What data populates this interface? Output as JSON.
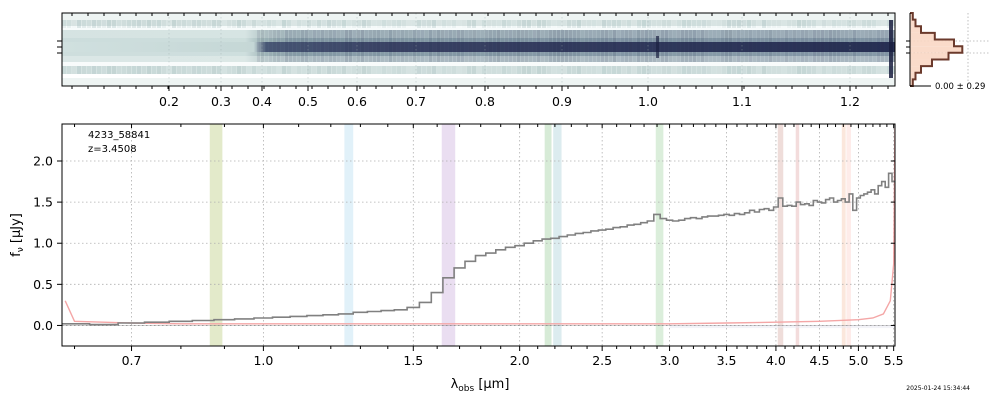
{
  "figure": {
    "timestamp": "2025-01-24 15:34:44"
  },
  "colors": {
    "spectrum": "#808080",
    "error": "#f4a6a6",
    "hist_fill": "#f9d7c4",
    "hist_line": "#6b3a2c",
    "grid": "#b0b0b0"
  },
  "chart_data": [
    {
      "type": "heatmap",
      "name": "2d-spectrum",
      "description_axis": "wavelength",
      "xticks": [
        "0.2",
        "0.3",
        "0.4",
        "0.5",
        "0.6",
        "0.7",
        "0.8",
        "0.9",
        "1.0",
        "1.1",
        "1.2"
      ],
      "colormap": "bone_r",
      "grid": true
    },
    {
      "type": "line",
      "name": "1d-spectrum",
      "annotation_id": "4233_58841",
      "annotation_z": "z=3.4508",
      "xlabel": "λobs [μm]",
      "ylabel": "fν [μJy]",
      "xscale": "log",
      "xlim": [
        0.58,
        5.52
      ],
      "ylim": [
        -0.25,
        2.45
      ],
      "xticks": [
        "0.7",
        "1.0",
        "1.5",
        "2.0",
        "2.5",
        "3.0",
        "3.5",
        "4.0",
        "4.5",
        "5.0",
        "5.5"
      ],
      "xtick_values": [
        0.7,
        1.0,
        1.5,
        2.0,
        2.5,
        3.0,
        3.5,
        4.0,
        4.5,
        5.0,
        5.5
      ],
      "yticks": [
        "0.0",
        "0.5",
        "1.0",
        "1.5",
        "2.0"
      ],
      "ytick_values": [
        0.0,
        0.5,
        1.0,
        1.5,
        2.0
      ],
      "grid": true,
      "line_bands": [
        {
          "lo": 0.865,
          "hi": 0.895,
          "color": "#d9e3b8"
        },
        {
          "lo": 1.245,
          "hi": 1.275,
          "color": "#d7ecf7"
        },
        {
          "lo": 1.62,
          "hi": 1.68,
          "color": "#e3d3ec"
        },
        {
          "lo": 2.14,
          "hi": 2.18,
          "color": "#c9e4c9"
        },
        {
          "lo": 2.19,
          "hi": 2.24,
          "color": "#d0e6ea"
        },
        {
          "lo": 2.89,
          "hi": 2.95,
          "color": "#cfe8cf"
        },
        {
          "lo": 4.02,
          "hi": 4.08,
          "color": "#ead2ce"
        },
        {
          "lo": 4.22,
          "hi": 4.26,
          "color": "#efd0d0"
        },
        {
          "lo": 4.78,
          "hi": 4.83,
          "color": "#fadfd0"
        },
        {
          "lo": 4.84,
          "hi": 4.9,
          "color": "#fde6e2"
        }
      ],
      "series": [
        {
          "role": "flux",
          "x": [
            0.6,
            0.65,
            0.7,
            0.75,
            0.8,
            0.85,
            0.9,
            0.95,
            1.0,
            1.05,
            1.1,
            1.15,
            1.2,
            1.25,
            1.3,
            1.35,
            1.4,
            1.45,
            1.5,
            1.55,
            1.6,
            1.65,
            1.7,
            1.75,
            1.8,
            1.85,
            1.9,
            1.95,
            2.0,
            2.05,
            2.1,
            2.15,
            2.2,
            2.25,
            2.3,
            2.35,
            2.4,
            2.45,
            2.5,
            2.55,
            2.6,
            2.65,
            2.7,
            2.75,
            2.8,
            2.85,
            2.9,
            2.95,
            3.0,
            3.05,
            3.1,
            3.15,
            3.2,
            3.25,
            3.3,
            3.35,
            3.4,
            3.45,
            3.5,
            3.55,
            3.6,
            3.65,
            3.7,
            3.75,
            3.8,
            3.85,
            3.9,
            3.95,
            4.0,
            4.05,
            4.1,
            4.15,
            4.2,
            4.25,
            4.3,
            4.35,
            4.4,
            4.45,
            4.5,
            4.55,
            4.6,
            4.65,
            4.7,
            4.75,
            4.8,
            4.85,
            4.9,
            4.95,
            5.0,
            5.05,
            5.1,
            5.15,
            5.2,
            5.25,
            5.3,
            5.35,
            5.4,
            5.45,
            5.5
          ],
          "y": [
            0.02,
            0.01,
            0.03,
            0.04,
            0.05,
            0.06,
            0.07,
            0.08,
            0.09,
            0.1,
            0.11,
            0.12,
            0.13,
            0.14,
            0.16,
            0.17,
            0.18,
            0.19,
            0.22,
            0.28,
            0.4,
            0.58,
            0.7,
            0.78,
            0.85,
            0.88,
            0.92,
            0.95,
            0.97,
            1.0,
            1.03,
            1.05,
            1.06,
            1.08,
            1.1,
            1.12,
            1.13,
            1.15,
            1.16,
            1.17,
            1.19,
            1.2,
            1.22,
            1.23,
            1.25,
            1.27,
            1.35,
            1.3,
            1.28,
            1.27,
            1.28,
            1.3,
            1.31,
            1.3,
            1.32,
            1.33,
            1.33,
            1.34,
            1.35,
            1.34,
            1.36,
            1.35,
            1.37,
            1.4,
            1.38,
            1.41,
            1.42,
            1.4,
            1.44,
            1.55,
            1.45,
            1.46,
            1.45,
            1.5,
            1.47,
            1.48,
            1.46,
            1.52,
            1.5,
            1.49,
            1.53,
            1.55,
            1.5,
            1.52,
            1.54,
            1.5,
            1.6,
            1.4,
            1.55,
            1.58,
            1.6,
            1.62,
            1.65,
            1.6,
            1.7,
            1.75,
            1.68,
            1.85,
            1.75
          ]
        },
        {
          "role": "error",
          "x": [
            0.585,
            0.6,
            0.7,
            0.8,
            0.9,
            1.0,
            1.2,
            1.5,
            2.0,
            2.5,
            3.0,
            3.5,
            4.0,
            4.5,
            5.0,
            5.2,
            5.35,
            5.45,
            5.5,
            5.52
          ],
          "y": [
            0.3,
            0.05,
            0.03,
            0.02,
            0.02,
            0.02,
            0.02,
            0.02,
            0.02,
            0.02,
            0.02,
            0.03,
            0.04,
            0.05,
            0.07,
            0.09,
            0.14,
            0.3,
            0.75,
            2.4
          ]
        }
      ]
    },
    {
      "type": "bar",
      "name": "residual-histogram",
      "annotation": "0.00 ± 0.29",
      "values": [
        0.05,
        0.1,
        0.2,
        0.45,
        0.8,
        0.95,
        0.7,
        0.4,
        0.2,
        0.1,
        0.05
      ]
    }
  ]
}
